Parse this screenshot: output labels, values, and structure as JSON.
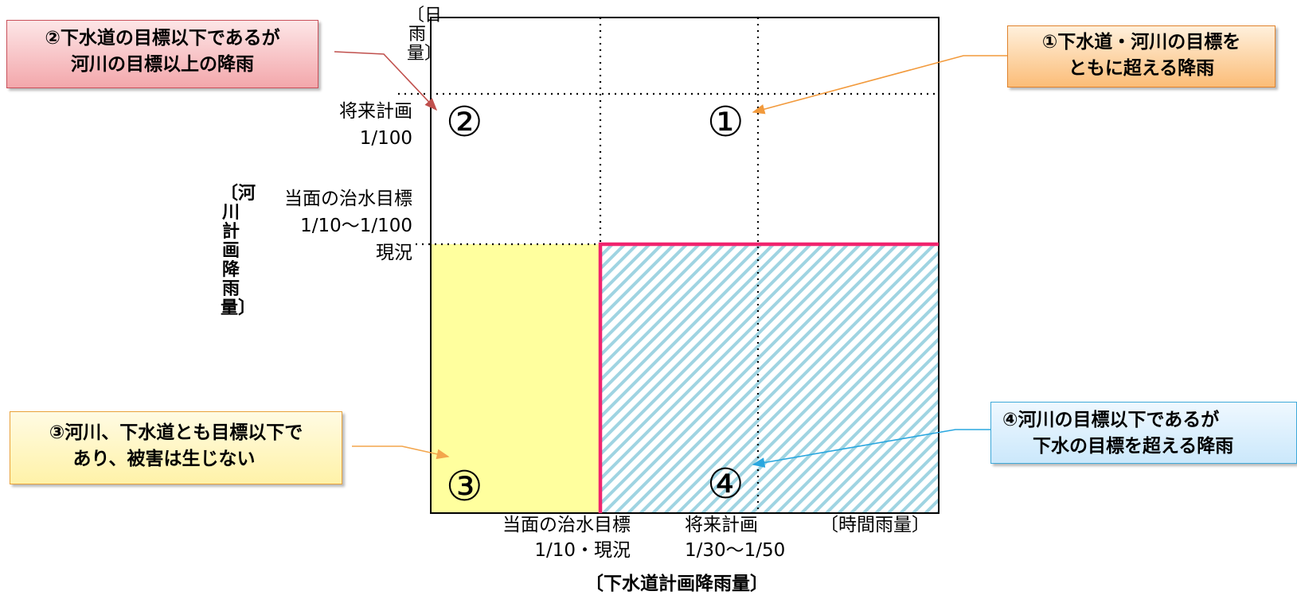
{
  "callouts": {
    "c1": {
      "line1": "①下水道・河川の目標を",
      "line2": "ともに超える降雨"
    },
    "c2": {
      "line1": "②下水道の目標以下であるが",
      "line2": "河川の目標以上の降雨"
    },
    "c3": {
      "line1": "③河川、下水道とも目標以下で",
      "line2": "あり、被害は生じない"
    },
    "c4": {
      "line1": "④河川の目標以下であるが",
      "line2": "下水の目標を超える降雨"
    }
  },
  "region_numbers": {
    "r1": "①",
    "r2": "②",
    "r3": "③",
    "r4": "④"
  },
  "y_axis": {
    "label": "〔河川計画降雨量〕",
    "unit": "〔日雨量〕",
    "future_line1": "将来計画",
    "future_line2": "1/100",
    "current_line1": "当面の治水目標",
    "current_line2": "1/10～1/100",
    "current_line3": "現況"
  },
  "x_axis": {
    "label": "〔下水道計画降雨量〕",
    "unit": "〔時間雨量〕",
    "current_line1": "当面の治水目標",
    "current_line2": "1/10・現況",
    "future_line1": "将来計画",
    "future_line2": "1/30～1/50"
  },
  "colors": {
    "region3_fill": "#ffff9e",
    "region4_hatch": "#9fd4e2",
    "boundary": "#f0246e",
    "arrow1": "#f29a3c",
    "arrow2": "#c0504d",
    "arrow3": "#f3a64d",
    "arrow4": "#2aa7df"
  },
  "icons": {
    "arrowhead": "arrowhead-icon"
  }
}
